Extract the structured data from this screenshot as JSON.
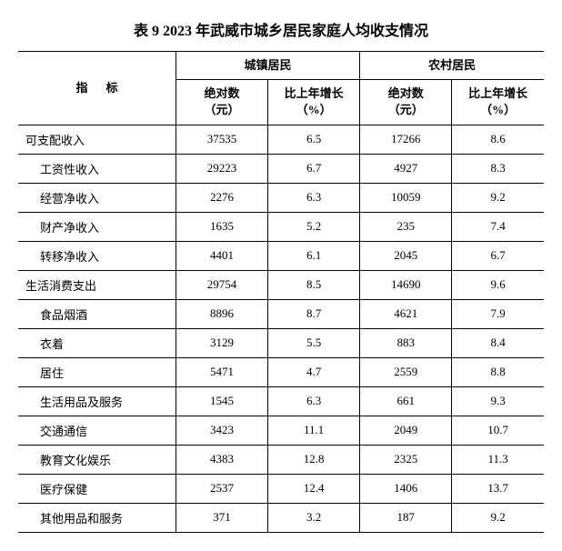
{
  "title": "表 9   2023 年武威市城乡居民家庭人均收支情况",
  "headers": {
    "indicator": "指标",
    "urban": "城镇居民",
    "rural": "农村居民",
    "absolute": "绝对数",
    "absolute_unit": "（元）",
    "growth": "比上年增长",
    "growth_unit": "（%）"
  },
  "rows": [
    {
      "label": "可支配收入",
      "indent": false,
      "urban_abs": "37535",
      "urban_growth": "6.5",
      "rural_abs": "17266",
      "rural_growth": "8.6"
    },
    {
      "label": "工资性收入",
      "indent": true,
      "urban_abs": "29223",
      "urban_growth": "6.7",
      "rural_abs": "4927",
      "rural_growth": "8.3"
    },
    {
      "label": "经营净收入",
      "indent": true,
      "urban_abs": "2276",
      "urban_growth": "6.3",
      "rural_abs": "10059",
      "rural_growth": "9.2"
    },
    {
      "label": "财产净收入",
      "indent": true,
      "urban_abs": "1635",
      "urban_growth": "5.2",
      "rural_abs": "235",
      "rural_growth": "7.4"
    },
    {
      "label": "转移净收入",
      "indent": true,
      "urban_abs": "4401",
      "urban_growth": "6.1",
      "rural_abs": "2045",
      "rural_growth": "6.7"
    },
    {
      "label": "生活消费支出",
      "indent": false,
      "urban_abs": "29754",
      "urban_growth": "8.5",
      "rural_abs": "14690",
      "rural_growth": "9.6"
    },
    {
      "label": "食品烟酒",
      "indent": true,
      "urban_abs": "8896",
      "urban_growth": "8.7",
      "rural_abs": "4621",
      "rural_growth": "7.9"
    },
    {
      "label": "衣着",
      "indent": true,
      "urban_abs": "3129",
      "urban_growth": "5.5",
      "rural_abs": "883",
      "rural_growth": "8.4"
    },
    {
      "label": "居住",
      "indent": true,
      "urban_abs": "5471",
      "urban_growth": "4.7",
      "rural_abs": "2559",
      "rural_growth": "8.8"
    },
    {
      "label": "生活用品及服务",
      "indent": true,
      "urban_abs": "1545",
      "urban_growth": "6.3",
      "rural_abs": "661",
      "rural_growth": "9.3"
    },
    {
      "label": "交通通信",
      "indent": true,
      "urban_abs": "3423",
      "urban_growth": "11.1",
      "rural_abs": "2049",
      "rural_growth": "10.7"
    },
    {
      "label": "教育文化娱乐",
      "indent": true,
      "urban_abs": "4383",
      "urban_growth": "12.8",
      "rural_abs": "2325",
      "rural_growth": "11.3"
    },
    {
      "label": "医疗保健",
      "indent": true,
      "urban_abs": "2537",
      "urban_growth": "12.4",
      "rural_abs": "1406",
      "rural_growth": "13.7"
    },
    {
      "label": "其他用品和服务",
      "indent": true,
      "urban_abs": "371",
      "urban_growth": "3.2",
      "rural_abs": "187",
      "rural_growth": "9.2"
    }
  ],
  "style": {
    "background_color": "#ffffff",
    "border_color": "#000000",
    "text_color": "#000000",
    "title_fontsize": 16,
    "cell_fontsize": 13,
    "col_widths": [
      "30%",
      "17.5%",
      "17.5%",
      "17.5%",
      "17.5%"
    ]
  }
}
